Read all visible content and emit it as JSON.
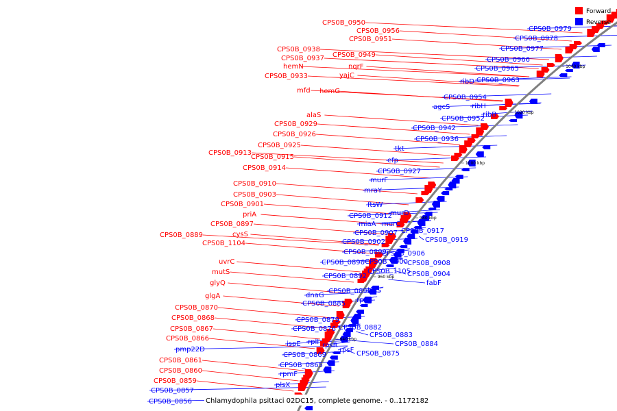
{
  "legend": {
    "forward": "Forward",
    "reverse": "Reverse"
  },
  "colors": {
    "forward": "#ff0000",
    "reverse": "#0000ff",
    "backbone": "#808080"
  },
  "caption": "Chlamydophila psittaci 02DC15, complete genome. - 0..1172182",
  "ticks": [
    "1060 kbp",
    "1040 kbp",
    "1020 kbp",
    "1000 kbp",
    "980 kbp",
    "960 kbp",
    "940 kbp"
  ],
  "forward_labels": [
    "CPS0B_0950",
    "CPS0B_0956",
    "CPS0B_0951",
    "CPS0B_0938",
    "CPS0B_0937",
    "hemN",
    "CPS0B_0949",
    "nqrF",
    "yajC",
    "CPS0B_0933",
    "mfd",
    "hemG",
    "alaS",
    "CPS0B_0929",
    "CPS0B_0926",
    "CPS0B_0925",
    "CPS0B_0913",
    "CPS0B_0915",
    "CPS0B_0914",
    "CPS0B_0910",
    "CPS0B_0903",
    "CPS0B_0901",
    "priA",
    "CPS0B_0897",
    "cysS",
    "CPS0B_0889",
    "CPS0B_1104",
    "uvrC",
    "mutS",
    "glyQ",
    "glgA",
    "CPS0B_0870",
    "CPS0B_0868",
    "CPS0B_0867",
    "CPS0B_0866",
    "CPS0B_0861",
    "CPS0B_0860",
    "CPS0B_0859"
  ],
  "reverse_labels": [
    "CPS0B_0979",
    "CPS0B_0978",
    "CPS0B_0977",
    "CPS0B_0966",
    "CPS0B_0965",
    "CPS0B_0963",
    "ribD",
    "CPS0B_0954",
    "agcS",
    "ribH",
    "ribB",
    "CPS0B_0952",
    "CPS0B_0942",
    "CPS0B_0936",
    "tkt",
    "efp",
    "CPS0B_0927",
    "murF",
    "mraY",
    "ftsW",
    "murD",
    "CPS0B_0912",
    "miaA",
    "murC",
    "CPS0B_0917",
    "CPS0B_0919",
    "CPS0B_0907",
    "CPS0B_0902",
    "CPS0B_0899",
    "CPS0B_0906",
    "CPS0B_0896",
    "CPS0B_0900",
    "CPS0B_0908",
    "CPS0B_1105",
    "CPS0B_0904",
    "CPS0B_0892",
    "fabF",
    "CPS0B_0890",
    "lysS",
    "rpmJ",
    "dnaG",
    "CPS0B_0885",
    "CPS0B_0879",
    "CPS0B_0882",
    "CPS0B_0876",
    "CPS0B_0883",
    "CPS0B_0884",
    "ispE",
    "rplI",
    "rpsR",
    "rpsF",
    "CPS0B_0875",
    "CPS0B_0869",
    "pmp22D",
    "CPS0B_0865",
    "rpmF",
    "plsX",
    "CPS0B_0857",
    "CPS0B_0856"
  ]
}
